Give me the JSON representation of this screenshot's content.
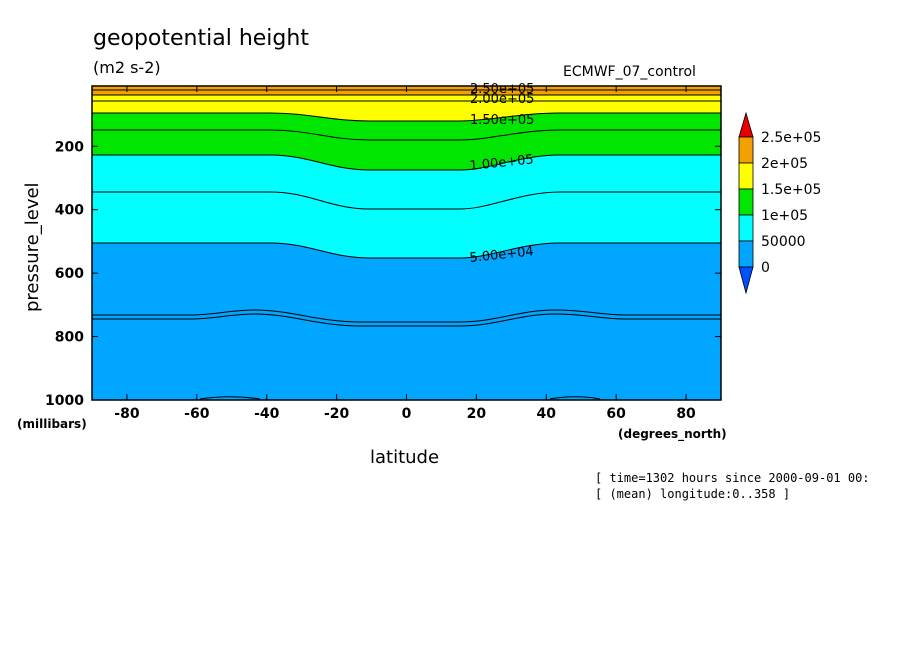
{
  "chart_data": {
    "type": "contour",
    "title": "geopotential height",
    "units": "(m2 s-2)",
    "dataset": "ECMWF_07_control",
    "xlabel": "latitude",
    "ylabel": "pressure_level",
    "x_unit": "(degrees_north)",
    "y_unit": "(millibars)",
    "xlim": [
      -90,
      90
    ],
    "ylim": [
      1000,
      10
    ],
    "x_ticks": [
      "-80",
      "-60",
      "-40",
      "-20",
      "0",
      "20",
      "40",
      "60",
      "80"
    ],
    "y_ticks": [
      "200",
      "400",
      "600",
      "800",
      "1000"
    ],
    "contour_labels": [
      "2.50e+05",
      "2.00e+05",
      "1.50e+05",
      "1.00e+05",
      "5.00e+04"
    ],
    "colorbar": {
      "labels": [
        "2.5e+05",
        "2e+05",
        "1.5e+05",
        "1e+05",
        "50000",
        "0"
      ],
      "colors": [
        "#f2a100",
        "#ffff00",
        "#00e600",
        "#00ffff",
        "#00a6ff"
      ],
      "over_color": "#e60000",
      "under_color": "#0050ff"
    },
    "annotations": [
      "[ time=1302 hours since 2000-09-01 00:",
      "[ (mean) longitude:0..358 ]"
    ]
  }
}
